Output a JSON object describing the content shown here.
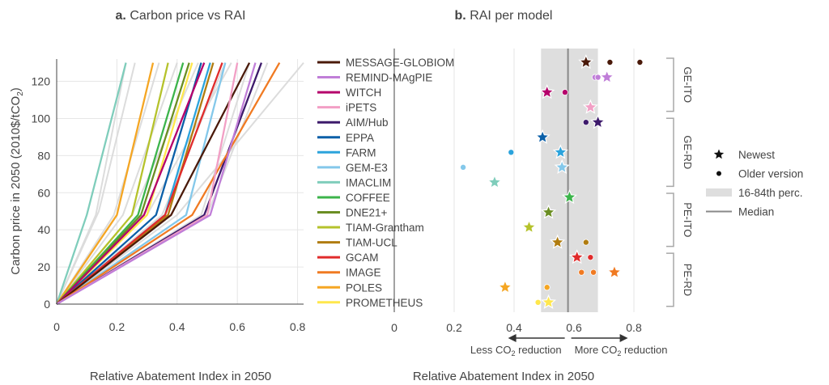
{
  "chart_data": [
    {
      "id": "a",
      "type": "line",
      "panel_label": "a.",
      "title": "Carbon price vs RAI",
      "xlabel": "Relative Abatement Index in 2050",
      "ylabel": "Carbon price in 2050 (2010$/tCO",
      "ylabel_sub": "2",
      "ylabel_end": ")",
      "xlim": [
        0,
        0.82
      ],
      "ylim": [
        0,
        132
      ],
      "xticks": [
        "0",
        "0.2",
        "0.4",
        "0.6",
        "0.8"
      ],
      "xtick_values": [
        0,
        0.2,
        0.4,
        0.6,
        0.8
      ],
      "yticks": [
        "0",
        "20",
        "40",
        "60",
        "80",
        "100",
        "120"
      ],
      "ytick_values": [
        0,
        20,
        40,
        60,
        80,
        100,
        120
      ],
      "grid": true,
      "background_series": [
        {
          "name": "other",
          "x": [
            0,
            0.13,
            0.23
          ],
          "y": [
            0,
            48,
            130
          ]
        },
        {
          "name": "other",
          "x": [
            0,
            0.14,
            0.26
          ],
          "y": [
            0,
            50,
            130
          ]
        },
        {
          "name": "other",
          "x": [
            0,
            0.19,
            0.34
          ],
          "y": [
            0,
            48,
            130
          ]
        },
        {
          "name": "other",
          "x": [
            0,
            0.22,
            0.4
          ],
          "y": [
            0,
            48,
            130
          ]
        },
        {
          "name": "other",
          "x": [
            0,
            0.25,
            0.47
          ],
          "y": [
            0,
            48,
            130
          ]
        },
        {
          "name": "other",
          "x": [
            0,
            0.4,
            0.82
          ],
          "y": [
            0,
            48,
            130
          ]
        },
        {
          "name": "other",
          "x": [
            0,
            0.48,
            0.64
          ],
          "y": [
            0,
            48,
            130
          ]
        },
        {
          "name": "other",
          "x": [
            0,
            0.5,
            0.7
          ],
          "y": [
            0,
            48,
            130
          ]
        },
        {
          "name": "other",
          "x": [
            0,
            0.3,
            0.58
          ],
          "y": [
            0,
            48,
            130
          ]
        },
        {
          "name": "other",
          "x": [
            0,
            0.35,
            0.56
          ],
          "y": [
            0,
            48,
            130
          ]
        }
      ],
      "series": [
        {
          "name": "IMACLIM",
          "color": "#7fcdbb",
          "x": [
            0,
            0.1,
            0.23
          ],
          "y": [
            0,
            48,
            130
          ]
        },
        {
          "name": "POLES",
          "color": "#f5a623",
          "x": [
            0,
            0.2,
            0.32
          ],
          "y": [
            0,
            48,
            130
          ]
        },
        {
          "name": "TIAM-Grantham",
          "color": "#b5c22b",
          "x": [
            0,
            0.25,
            0.37
          ],
          "y": [
            0,
            48,
            130
          ]
        },
        {
          "name": "COFFEE",
          "color": "#3cb44b",
          "x": [
            0,
            0.27,
            0.42
          ],
          "y": [
            0,
            48,
            130
          ]
        },
        {
          "name": "DNE21+",
          "color": "#6b8e23",
          "x": [
            0,
            0.28,
            0.44
          ],
          "y": [
            0,
            48,
            130
          ]
        },
        {
          "name": "PROMETHEUS",
          "color": "#ffe74c",
          "x": [
            0,
            0.3,
            0.45
          ],
          "y": [
            0,
            48,
            130
          ]
        },
        {
          "name": "EPPA",
          "color": "#0a5fa8",
          "x": [
            0,
            0.33,
            0.48
          ],
          "y": [
            0,
            48,
            130
          ]
        },
        {
          "name": "WITCH",
          "color": "#b5006b",
          "x": [
            0,
            0.29,
            0.49
          ],
          "y": [
            0,
            48,
            130
          ]
        },
        {
          "name": "FARM",
          "color": "#2ba3dc",
          "x": [
            0,
            0.36,
            0.51
          ],
          "y": [
            0,
            48,
            130
          ]
        },
        {
          "name": "TIAM-UCL",
          "color": "#b07c10",
          "x": [
            0,
            0.37,
            0.52
          ],
          "y": [
            0,
            48,
            130
          ]
        },
        {
          "name": "GCAM",
          "color": "#e02b2b",
          "x": [
            0,
            0.36,
            0.55
          ],
          "y": [
            0,
            48,
            130
          ]
        },
        {
          "name": "GEM-E3",
          "color": "#84c8ea",
          "x": [
            0,
            0.43,
            0.56
          ],
          "y": [
            0,
            48,
            130
          ]
        },
        {
          "name": "MESSAGE-GLOBIOM",
          "color": "#4a1a0a",
          "x": [
            0,
            0.38,
            0.64
          ],
          "y": [
            0,
            48,
            130
          ]
        },
        {
          "name": "AIM/Hub",
          "color": "#3d1a6b",
          "x": [
            0,
            0.49,
            0.68
          ],
          "y": [
            0,
            48,
            130
          ]
        },
        {
          "name": "IMAGE",
          "color": "#f07a22",
          "x": [
            0,
            0.45,
            0.74
          ],
          "y": [
            0,
            48,
            130
          ]
        },
        {
          "name": "iPETS",
          "color": "#f29fc5",
          "x": [
            0,
            0.5,
            0.6
          ],
          "y": [
            0,
            48,
            130
          ]
        },
        {
          "name": "REMIND-MAgPIE",
          "color": "#c07ed8",
          "x": [
            0,
            0.51,
            0.66
          ],
          "y": [
            0,
            48,
            130
          ]
        }
      ]
    },
    {
      "id": "b",
      "type": "scatter",
      "panel_label": "b.",
      "title": "RAI per model",
      "xlabel": "Relative Abatement Index in 2050",
      "xlim": [
        0,
        0.9
      ],
      "xticks": [
        "0",
        "0.2",
        "0.4",
        "0.6",
        "0.8"
      ],
      "xtick_values": [
        0,
        0.2,
        0.4,
        0.6,
        0.8
      ],
      "percentile_range": [
        0.49,
        0.68
      ],
      "median": 0.58,
      "models": [
        {
          "name": "MESSAGE-GLOBIOM",
          "color": "#4a1a0a",
          "newest": 0.64,
          "older": [
            0.72,
            0.82
          ]
        },
        {
          "name": "REMIND-MAgPIE",
          "color": "#c07ed8",
          "newest": 0.71,
          "older": [
            0.67,
            0.68
          ]
        },
        {
          "name": "WITCH",
          "color": "#b5006b",
          "newest": 0.51,
          "older": [
            0.57
          ]
        },
        {
          "name": "iPETS",
          "color": "#f29fc5",
          "newest": 0.655,
          "older": []
        },
        {
          "name": "AIM/Hub",
          "color": "#3d1a6b",
          "newest": 0.68,
          "older": [
            0.64
          ]
        },
        {
          "name": "EPPA",
          "color": "#0a5fa8",
          "newest": 0.495,
          "older": []
        },
        {
          "name": "FARM",
          "color": "#2ba3dc",
          "newest": 0.555,
          "older": [
            0.39
          ]
        },
        {
          "name": "GEM-E3",
          "color": "#84c8ea",
          "newest": 0.56,
          "older": [
            0.23
          ]
        },
        {
          "name": "IMACLIM",
          "color": "#7fcdbb",
          "newest": 0.335,
          "older": []
        },
        {
          "name": "COFFEE",
          "color": "#3cb44b",
          "newest": 0.585,
          "older": []
        },
        {
          "name": "DNE21+",
          "color": "#6b8e23",
          "newest": 0.515,
          "older": []
        },
        {
          "name": "TIAM-Grantham",
          "color": "#b5c22b",
          "newest": 0.45,
          "older": []
        },
        {
          "name": "TIAM-UCL",
          "color": "#b07c10",
          "newest": 0.545,
          "older": [
            0.64
          ]
        },
        {
          "name": "GCAM",
          "color": "#e02b2b",
          "newest": 0.61,
          "older": [
            0.655
          ]
        },
        {
          "name": "IMAGE",
          "color": "#f07a22",
          "newest": 0.735,
          "older": [
            0.625,
            0.665
          ]
        },
        {
          "name": "POLES",
          "color": "#f5a623",
          "newest": 0.37,
          "older": [
            0.51
          ]
        },
        {
          "name": "PROMETHEUS",
          "color": "#ffe74c",
          "newest": 0.515,
          "older": [
            0.48
          ]
        }
      ],
      "groups": [
        {
          "label": "GE-ITO",
          "first": "MESSAGE-GLOBIOM",
          "last": "iPETS"
        },
        {
          "label": "GE-RD",
          "first": "AIM/Hub",
          "last": "IMACLIM"
        },
        {
          "label": "PE-ITO",
          "first": "COFFEE",
          "last": "TIAM-UCL"
        },
        {
          "label": "PE-RD",
          "first": "GCAM",
          "last": "PROMETHEUS"
        }
      ],
      "annotations": {
        "less": "Less CO",
        "less_sub": "2",
        "less_end": " reduction",
        "more": "More CO",
        "more_sub": "2",
        "more_end": " reduction"
      },
      "legend": [
        {
          "symbol": "star",
          "label": "Newest"
        },
        {
          "symbol": "dot",
          "label": "Older version"
        },
        {
          "symbol": "band",
          "label": "16-84th perc."
        },
        {
          "symbol": "line",
          "label": "Median"
        }
      ]
    }
  ],
  "colors": {
    "axis": "#444444",
    "grid": "#e6e6e6",
    "band": "#dedede",
    "median": "#888888",
    "background_line": "#dcdcdc",
    "group_bracket": "#a8a8a8"
  }
}
